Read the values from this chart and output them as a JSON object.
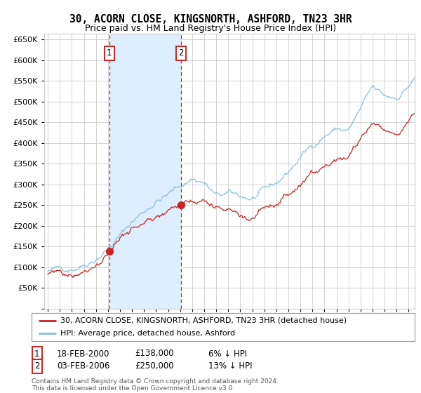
{
  "title": "30, ACORN CLOSE, KINGSNORTH, ASHFORD, TN23 3HR",
  "subtitle": "Price paid vs. HM Land Registry's House Price Index (HPI)",
  "ylim": [
    0,
    650000
  ],
  "yticks": [
    0,
    50000,
    100000,
    150000,
    200000,
    250000,
    300000,
    350000,
    400000,
    450000,
    500000,
    550000,
    600000,
    650000
  ],
  "xlim_start": 1994.7,
  "xlim_end": 2025.5,
  "sale1_year": 2000.12,
  "sale1_price": 138000,
  "sale1_label": "1",
  "sale1_date": "18-FEB-2000",
  "sale1_hpi_diff": "6% ↓ HPI",
  "sale2_year": 2006.09,
  "sale2_price": 250000,
  "sale2_label": "2",
  "sale2_date": "03-FEB-2006",
  "sale2_hpi_diff": "13% ↓ HPI",
  "hpi_color": "#89bfdd",
  "price_color": "#cc2222",
  "shade_color": "#ddeeff",
  "grid_color": "#cccccc",
  "bg_color": "#ffffff",
  "legend1": "30, ACORN CLOSE, KINGSNORTH, ASHFORD, TN23 3HR (detached house)",
  "legend2": "HPI: Average price, detached house, Ashford",
  "footer": "Contains HM Land Registry data © Crown copyright and database right 2024.\nThis data is licensed under the Open Government Licence v3.0."
}
